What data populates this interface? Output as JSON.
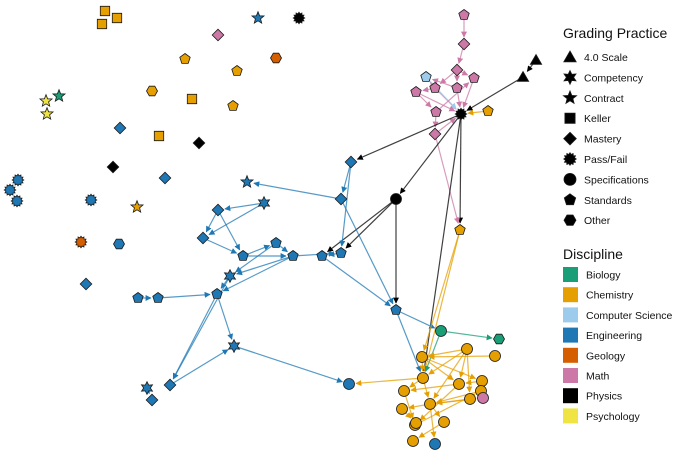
{
  "colors": {
    "Biology": "#1a9e77",
    "Chemistry": "#e69f00",
    "Computer Science": "#9ccbeb",
    "Engineering": "#1f78b4",
    "Geology": "#d55e00",
    "Math": "#cc79a7",
    "Physics": "#000000",
    "Psychology": "#f0e442"
  },
  "legend": {
    "shape_title": "Grading Practice",
    "shapes": [
      {
        "shape": "triangle",
        "label": "4.0 Scale"
      },
      {
        "shape": "star6",
        "label": "Competency"
      },
      {
        "shape": "star5",
        "label": "Contract"
      },
      {
        "shape": "square",
        "label": "Keller"
      },
      {
        "shape": "diamond",
        "label": "Mastery"
      },
      {
        "shape": "starburst",
        "label": "Pass/Fail"
      },
      {
        "shape": "circle",
        "label": "Specifications"
      },
      {
        "shape": "pentagon",
        "label": "Standards"
      },
      {
        "shape": "hexagon",
        "label": "Other"
      }
    ],
    "color_title": "Discipline",
    "disciplines": [
      "Biology",
      "Chemistry",
      "Computer Science",
      "Engineering",
      "Geology",
      "Math",
      "Physics",
      "Psychology"
    ]
  },
  "network": {
    "nodes": [
      {
        "id": "sq1",
        "shape": "square",
        "disc": "Chemistry"
      },
      {
        "id": "sq2",
        "shape": "square",
        "disc": "Chemistry"
      },
      {
        "id": "sq3",
        "shape": "square",
        "disc": "Chemistry"
      },
      {
        "id": "st1",
        "shape": "star5",
        "disc": "Engineering"
      },
      {
        "id": "bu1",
        "shape": "starburst",
        "disc": "Physics"
      },
      {
        "id": "dm1",
        "shape": "diamond",
        "disc": "Math"
      },
      {
        "id": "pe1",
        "shape": "pentagon",
        "disc": "Chemistry"
      },
      {
        "id": "pe2",
        "shape": "pentagon",
        "disc": "Chemistry"
      },
      {
        "id": "hx1",
        "shape": "hexagon",
        "disc": "Geology"
      },
      {
        "id": "hx2",
        "shape": "hexagon",
        "disc": "Chemistry"
      },
      {
        "id": "sq4",
        "shape": "square",
        "disc": "Chemistry"
      },
      {
        "id": "pe3",
        "shape": "pentagon",
        "disc": "Chemistry"
      },
      {
        "id": "dm2",
        "shape": "diamond",
        "disc": "Engineering"
      },
      {
        "id": "sq5",
        "shape": "square",
        "disc": "Chemistry"
      },
      {
        "id": "dm3",
        "shape": "diamond",
        "disc": "Physics"
      },
      {
        "id": "dm4",
        "shape": "diamond",
        "disc": "Physics"
      },
      {
        "id": "dm5",
        "shape": "diamond",
        "disc": "Engineering"
      },
      {
        "id": "st2",
        "shape": "star5",
        "disc": "Chemistry"
      },
      {
        "id": "ps1",
        "shape": "star5",
        "disc": "Psychology"
      },
      {
        "id": "ps2",
        "shape": "star5",
        "disc": "Psychology"
      },
      {
        "id": "bio1",
        "shape": "star5",
        "disc": "Biology"
      },
      {
        "id": "bu2",
        "shape": "starburst",
        "disc": "Engineering"
      },
      {
        "id": "bu3",
        "shape": "starburst",
        "disc": "Engineering"
      },
      {
        "id": "bu4",
        "shape": "starburst",
        "disc": "Engineering"
      },
      {
        "id": "bu5",
        "shape": "starburst",
        "disc": "Engineering"
      },
      {
        "id": "bu6",
        "shape": "starburst",
        "disc": "Geology"
      },
      {
        "id": "hx3",
        "shape": "hexagon",
        "disc": "Engineering"
      },
      {
        "id": "dm6",
        "shape": "diamond",
        "disc": "Engineering"
      },
      {
        "id": "pm1",
        "shape": "pentagon",
        "disc": "Math"
      },
      {
        "id": "dm7",
        "shape": "diamond",
        "disc": "Math"
      },
      {
        "id": "dm8",
        "shape": "diamond",
        "disc": "Math"
      },
      {
        "id": "pm2",
        "shape": "pentagon",
        "disc": "Math"
      },
      {
        "id": "pm3",
        "shape": "pentagon",
        "disc": "Math"
      },
      {
        "id": "pm4",
        "shape": "pentagon",
        "disc": "Math"
      },
      {
        "id": "cs1",
        "shape": "pentagon",
        "disc": "Computer Science"
      },
      {
        "id": "pm5",
        "shape": "pentagon",
        "disc": "Math"
      },
      {
        "id": "dm9",
        "shape": "diamond",
        "disc": "Math"
      },
      {
        "id": "hub",
        "shape": "starburst",
        "disc": "Physics"
      },
      {
        "id": "pc1",
        "shape": "pentagon",
        "disc": "Chemistry"
      },
      {
        "id": "pm6",
        "shape": "pentagon",
        "disc": "Math"
      },
      {
        "id": "t1",
        "shape": "triangle",
        "disc": "Physics"
      },
      {
        "id": "t2",
        "shape": "triangle",
        "disc": "Physics"
      },
      {
        "id": "phc",
        "shape": "circle",
        "disc": "Physics"
      },
      {
        "id": "pc2",
        "shape": "pentagon",
        "disc": "Chemistry"
      },
      {
        "id": "ed1",
        "shape": "diamond",
        "disc": "Engineering"
      },
      {
        "id": "ed2",
        "shape": "diamond",
        "disc": "Engineering"
      },
      {
        "id": "es1",
        "shape": "star5",
        "disc": "Engineering"
      },
      {
        "id": "es2",
        "shape": "star6",
        "disc": "Engineering"
      },
      {
        "id": "ed3",
        "shape": "diamond",
        "disc": "Engineering"
      },
      {
        "id": "ed4",
        "shape": "diamond",
        "disc": "Engineering"
      },
      {
        "id": "ep1",
        "shape": "pentagon",
        "disc": "Engineering"
      },
      {
        "id": "ep2",
        "shape": "pentagon",
        "disc": "Engineering"
      },
      {
        "id": "ep3",
        "shape": "pentagon",
        "disc": "Engineering"
      },
      {
        "id": "es3",
        "shape": "star6",
        "disc": "Engineering"
      },
      {
        "id": "ep4",
        "shape": "pentagon",
        "disc": "Engineering"
      },
      {
        "id": "ep5",
        "shape": "pentagon",
        "disc": "Engineering"
      },
      {
        "id": "ep6",
        "shape": "pentagon",
        "disc": "Engineering"
      },
      {
        "id": "ep7",
        "shape": "pentagon",
        "disc": "Engineering"
      },
      {
        "id": "ep8",
        "shape": "pentagon",
        "disc": "Engineering"
      },
      {
        "id": "es4",
        "shape": "star6",
        "disc": "Engineering"
      },
      {
        "id": "es5",
        "shape": "star6",
        "disc": "Engineering"
      },
      {
        "id": "ed5",
        "shape": "diamond",
        "disc": "Engineering"
      },
      {
        "id": "ed6",
        "shape": "diamond",
        "disc": "Engineering"
      },
      {
        "id": "ec1",
        "shape": "circle",
        "disc": "Engineering"
      },
      {
        "id": "ep9",
        "shape": "pentagon",
        "disc": "Engineering"
      },
      {
        "id": "bc1",
        "shape": "circle",
        "disc": "Biology"
      },
      {
        "id": "bh1",
        "shape": "hexagon",
        "disc": "Biology"
      },
      {
        "id": "cc1",
        "shape": "circle",
        "disc": "Chemistry"
      },
      {
        "id": "cc2",
        "shape": "circle",
        "disc": "Chemistry"
      },
      {
        "id": "cc3",
        "shape": "circle",
        "disc": "Chemistry"
      },
      {
        "id": "cc4",
        "shape": "circle",
        "disc": "Chemistry"
      },
      {
        "id": "cc5",
        "shape": "circle",
        "disc": "Chemistry"
      },
      {
        "id": "cc6",
        "shape": "circle",
        "disc": "Chemistry"
      },
      {
        "id": "cc7",
        "shape": "circle",
        "disc": "Chemistry"
      },
      {
        "id": "cc8",
        "shape": "circle",
        "disc": "Chemistry"
      },
      {
        "id": "cc9",
        "shape": "circle",
        "disc": "Chemistry"
      },
      {
        "id": "cc10",
        "shape": "circle",
        "disc": "Chemistry"
      },
      {
        "id": "cc11",
        "shape": "circle",
        "disc": "Chemistry"
      },
      {
        "id": "cc12",
        "shape": "circle",
        "disc": "Chemistry"
      },
      {
        "id": "cc13",
        "shape": "circle",
        "disc": "Chemistry"
      },
      {
        "id": "cc14",
        "shape": "circle",
        "disc": "Chemistry"
      },
      {
        "id": "cc15",
        "shape": "circle",
        "disc": "Chemistry"
      },
      {
        "id": "mc1",
        "shape": "circle",
        "disc": "Math"
      },
      {
        "id": "ec2",
        "shape": "circle",
        "disc": "Engineering"
      }
    ],
    "edges": [
      [
        "t1",
        "t2"
      ],
      [
        "t2",
        "hub"
      ],
      [
        "pm1",
        "dm7"
      ],
      [
        "dm7",
        "dm8"
      ],
      [
        "dm8",
        "pm2"
      ],
      [
        "dm8",
        "pm3"
      ],
      [
        "dm8",
        "pm4"
      ],
      [
        "pm2",
        "pm5"
      ],
      [
        "pm2",
        "cs1"
      ],
      [
        "pm3",
        "cs1"
      ],
      [
        "pm4",
        "hub"
      ],
      [
        "pm3",
        "hub"
      ],
      [
        "pm2",
        "hub"
      ],
      [
        "cs1",
        "hub"
      ],
      [
        "pm5",
        "hub"
      ],
      [
        "pm5",
        "pm6"
      ],
      [
        "pm6",
        "dm9"
      ],
      [
        "dm9",
        "hub"
      ],
      [
        "pc1",
        "hub"
      ],
      [
        "pm6",
        "pm4"
      ],
      [
        "hub",
        "pc2"
      ],
      [
        "dm9",
        "pc2"
      ],
      [
        "hub",
        "phc"
      ],
      [
        "hub",
        "ed1"
      ],
      [
        "hub",
        "cc1"
      ],
      [
        "phc",
        "ep4"
      ],
      [
        "phc",
        "ep9"
      ],
      [
        "phc",
        "ep5"
      ],
      [
        "ed1",
        "ed2"
      ],
      [
        "ed1",
        "ep4"
      ],
      [
        "ed2",
        "es1"
      ],
      [
        "ed2",
        "ep9"
      ],
      [
        "es2",
        "ed3"
      ],
      [
        "es2",
        "ed4"
      ],
      [
        "ed3",
        "ed4"
      ],
      [
        "ed3",
        "ep1"
      ],
      [
        "ed4",
        "ep1"
      ],
      [
        "ep1",
        "ep2"
      ],
      [
        "ep1",
        "ep3"
      ],
      [
        "ep2",
        "ep3"
      ],
      [
        "ep3",
        "es3"
      ],
      [
        "ep2",
        "es3"
      ],
      [
        "ep3",
        "ep4"
      ],
      [
        "ep4",
        "ep5"
      ],
      [
        "es3",
        "ep8"
      ],
      [
        "ep3",
        "ep8"
      ],
      [
        "ep6",
        "ep7"
      ],
      [
        "ep7",
        "ep8"
      ],
      [
        "ep8",
        "es4"
      ],
      [
        "ep8",
        "ed5"
      ],
      [
        "es3",
        "ed5"
      ],
      [
        "ed5",
        "es4"
      ],
      [
        "ep5",
        "ep9"
      ],
      [
        "es4",
        "ec1"
      ],
      [
        "es5",
        "ed6"
      ],
      [
        "es5",
        "ed6b"
      ],
      [
        "ep9",
        "bc1"
      ],
      [
        "ep9",
        "cc1"
      ],
      [
        "pc2",
        "cc1"
      ],
      [
        "pc2",
        "cc3"
      ],
      [
        "bc1",
        "bh1"
      ],
      [
        "bc1",
        "cc1"
      ],
      [
        "cc1",
        "ec1"
      ],
      [
        "cc2",
        "cc1"
      ],
      [
        "cc2",
        "cc3"
      ],
      [
        "cc2",
        "cc8"
      ],
      [
        "cc2",
        "cc9"
      ],
      [
        "cc2",
        "cc6"
      ],
      [
        "cc3",
        "cc1"
      ],
      [
        "cc3",
        "cc5"
      ],
      [
        "cc3",
        "cc6"
      ],
      [
        "cc4",
        "cc3"
      ],
      [
        "cc5",
        "cc6"
      ],
      [
        "cc5",
        "mc1"
      ],
      [
        "cc6",
        "cc7"
      ],
      [
        "cc6",
        "cc12"
      ],
      [
        "cc7",
        "cc12"
      ],
      [
        "cc8",
        "cc9"
      ],
      [
        "cc9",
        "cc10"
      ],
      [
        "cc9",
        "cc11"
      ],
      [
        "cc9",
        "mc1"
      ],
      [
        "cc10",
        "cc13"
      ],
      [
        "cc11",
        "cc14"
      ],
      [
        "cc12",
        "cc15"
      ],
      [
        "cc9",
        "ec2"
      ],
      [
        "cc1",
        "cc9"
      ],
      [
        "cc1",
        "cc7"
      ],
      [
        "cc15",
        "cc9"
      ]
    ]
  }
}
